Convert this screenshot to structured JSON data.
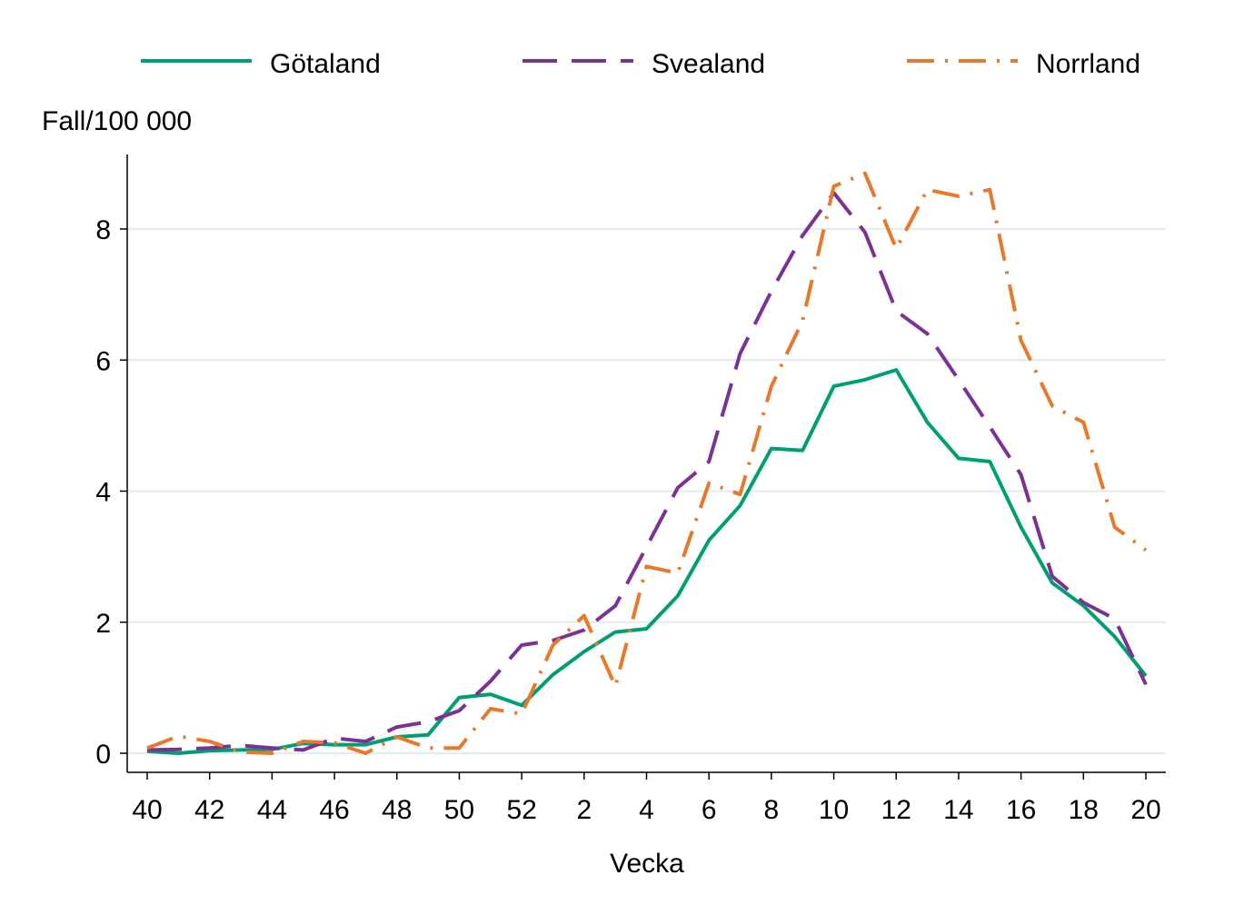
{
  "chart_data": {
    "type": "line",
    "title": "",
    "ylabel": "Fall/100 000",
    "xlabel": "Vecka",
    "ylim": [
      0,
      9
    ],
    "yticks": [
      0,
      2,
      4,
      6,
      8
    ],
    "x": [
      "40",
      "41",
      "42",
      "43",
      "44",
      "45",
      "46",
      "47",
      "48",
      "49",
      "50",
      "51",
      "52",
      "1",
      "2",
      "3",
      "4",
      "5",
      "6",
      "7",
      "8",
      "9",
      "10",
      "11",
      "12",
      "13",
      "14",
      "15",
      "16",
      "17",
      "18",
      "19",
      "20"
    ],
    "xtick_labels": [
      "40",
      "42",
      "44",
      "46",
      "48",
      "50",
      "52",
      "2",
      "4",
      "6",
      "8",
      "10",
      "12",
      "14",
      "16",
      "18",
      "20"
    ],
    "legend_position": "top",
    "series": [
      {
        "name": "Götaland",
        "color": "#009e73",
        "dash": "solid",
        "values": [
          0.03,
          0.0,
          0.04,
          0.05,
          0.06,
          0.15,
          0.13,
          0.13,
          0.25,
          0.28,
          0.85,
          0.9,
          0.73,
          1.2,
          1.55,
          1.85,
          1.9,
          2.4,
          3.25,
          3.78,
          4.65,
          4.62,
          5.6,
          5.7,
          5.85,
          5.05,
          4.5,
          4.45,
          3.45,
          2.6,
          2.25,
          1.78,
          1.18
        ]
      },
      {
        "name": "Svealand",
        "color": "#7b3294",
        "dash": "dashed",
        "values": [
          0.05,
          0.06,
          0.08,
          0.12,
          0.08,
          0.05,
          0.23,
          0.18,
          0.4,
          0.48,
          0.65,
          1.1,
          1.65,
          1.72,
          1.88,
          2.25,
          3.15,
          4.05,
          4.45,
          6.1,
          7.05,
          7.9,
          8.55,
          7.95,
          6.75,
          6.4,
          5.7,
          4.98,
          4.25,
          2.7,
          2.3,
          2.05,
          1.05
        ]
      },
      {
        "name": "Norrland",
        "color": "#e8792b",
        "dash": "dashdot",
        "values": [
          0.08,
          0.26,
          0.18,
          0.02,
          0.0,
          0.18,
          0.16,
          0.0,
          0.25,
          0.08,
          0.08,
          0.68,
          0.6,
          1.65,
          2.1,
          1.02,
          2.85,
          2.75,
          4.12,
          3.95,
          5.6,
          6.6,
          8.65,
          8.85,
          7.7,
          8.6,
          8.5,
          8.6,
          6.3,
          5.3,
          5.05,
          3.45,
          3.1
        ]
      }
    ]
  }
}
